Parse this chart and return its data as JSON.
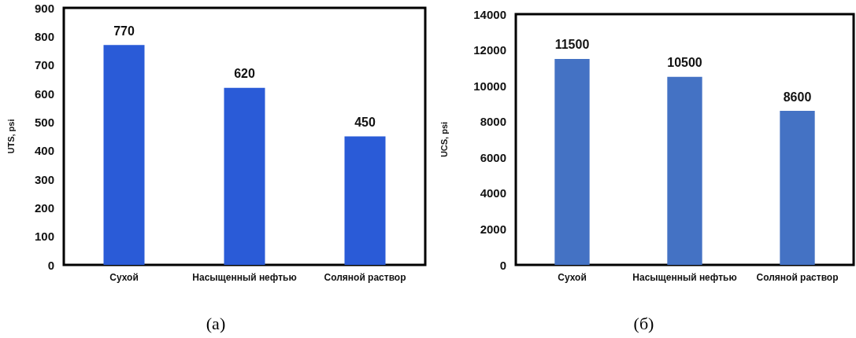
{
  "chart_data": [
    {
      "type": "bar",
      "ylabel": "UTS, psi",
      "categories": [
        "Сухой",
        "Насыщенный нефтью",
        "Соляной раствор"
      ],
      "values": [
        770,
        620,
        450
      ],
      "color": "#2a5bd7",
      "ylim": [
        0,
        900
      ],
      "yticks": [
        0,
        100,
        200,
        300,
        400,
        500,
        600,
        700,
        800,
        900
      ],
      "grid": false,
      "data_labels": true,
      "annotations": [
        "(а)"
      ]
    },
    {
      "type": "bar",
      "ylabel": "UCS, psi",
      "categories": [
        "Сухой",
        "Насыщенный нефтью",
        "Соляной раствор"
      ],
      "values": [
        11500,
        10500,
        8600
      ],
      "color": "#4472c4",
      "ylim": [
        0,
        14000
      ],
      "yticks": [
        0,
        2000,
        4000,
        6000,
        8000,
        10000,
        12000,
        14000
      ],
      "grid": false,
      "data_labels": true,
      "annotations": [
        "(б)"
      ]
    }
  ]
}
